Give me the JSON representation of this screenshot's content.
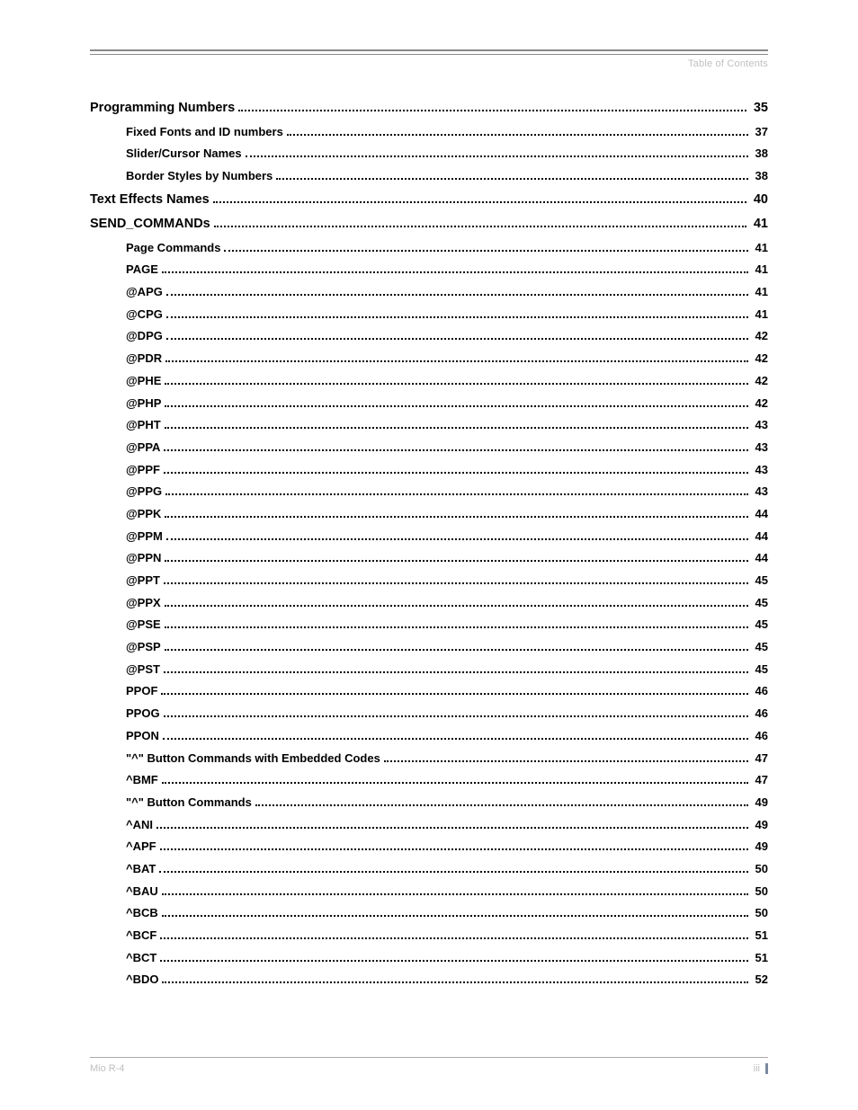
{
  "header": {
    "label": "Table of Contents"
  },
  "toc": {
    "entries": [
      {
        "level": 0,
        "title": "Programming Numbers",
        "page": "35"
      },
      {
        "level": 1,
        "title": "Fixed Fonts and ID numbers",
        "page": "37"
      },
      {
        "level": 1,
        "title": "Slider/Cursor Names",
        "page": "38"
      },
      {
        "level": 1,
        "title": "Border Styles by Numbers",
        "page": "38"
      },
      {
        "level": 0,
        "title": "Text Effects Names",
        "page": "40"
      },
      {
        "level": 0,
        "title": "SEND_COMMANDs",
        "page": "41"
      },
      {
        "level": 1,
        "title": "Page Commands",
        "page": "41"
      },
      {
        "level": 1,
        "title": "PAGE",
        "page": "41"
      },
      {
        "level": 1,
        "title": "@APG",
        "page": "41"
      },
      {
        "level": 1,
        "title": "@CPG",
        "page": "41"
      },
      {
        "level": 1,
        "title": "@DPG",
        "page": "42"
      },
      {
        "level": 1,
        "title": "@PDR",
        "page": "42"
      },
      {
        "level": 1,
        "title": "@PHE",
        "page": "42"
      },
      {
        "level": 1,
        "title": "@PHP",
        "page": "42"
      },
      {
        "level": 1,
        "title": "@PHT",
        "page": "43"
      },
      {
        "level": 1,
        "title": "@PPA",
        "page": "43"
      },
      {
        "level": 1,
        "title": "@PPF",
        "page": "43"
      },
      {
        "level": 1,
        "title": "@PPG",
        "page": "43"
      },
      {
        "level": 1,
        "title": "@PPK",
        "page": "44"
      },
      {
        "level": 1,
        "title": "@PPM",
        "page": "44"
      },
      {
        "level": 1,
        "title": "@PPN",
        "page": "44"
      },
      {
        "level": 1,
        "title": "@PPT",
        "page": "45"
      },
      {
        "level": 1,
        "title": "@PPX",
        "page": "45"
      },
      {
        "level": 1,
        "title": "@PSE",
        "page": "45"
      },
      {
        "level": 1,
        "title": "@PSP",
        "page": "45"
      },
      {
        "level": 1,
        "title": "@PST",
        "page": "45"
      },
      {
        "level": 1,
        "title": "PPOF",
        "page": "46"
      },
      {
        "level": 1,
        "title": "PPOG",
        "page": "46"
      },
      {
        "level": 1,
        "title": "PPON",
        "page": "46"
      },
      {
        "level": 1,
        "title": "\"^\" Button Commands with Embedded Codes",
        "page": "47"
      },
      {
        "level": 1,
        "title": "^BMF",
        "page": "47"
      },
      {
        "level": 1,
        "title": "\"^\" Button Commands",
        "page": "49"
      },
      {
        "level": 1,
        "title": "^ANI",
        "page": "49"
      },
      {
        "level": 1,
        "title": "^APF",
        "page": "49"
      },
      {
        "level": 1,
        "title": "^BAT",
        "page": "50"
      },
      {
        "level": 1,
        "title": "^BAU",
        "page": "50"
      },
      {
        "level": 1,
        "title": "^BCB",
        "page": "50"
      },
      {
        "level": 1,
        "title": "^BCF",
        "page": "51"
      },
      {
        "level": 1,
        "title": "^BCT",
        "page": "51"
      },
      {
        "level": 1,
        "title": "^BDO",
        "page": "52"
      }
    ]
  },
  "footer": {
    "product": "Mio R-4",
    "page_number": "iii"
  }
}
